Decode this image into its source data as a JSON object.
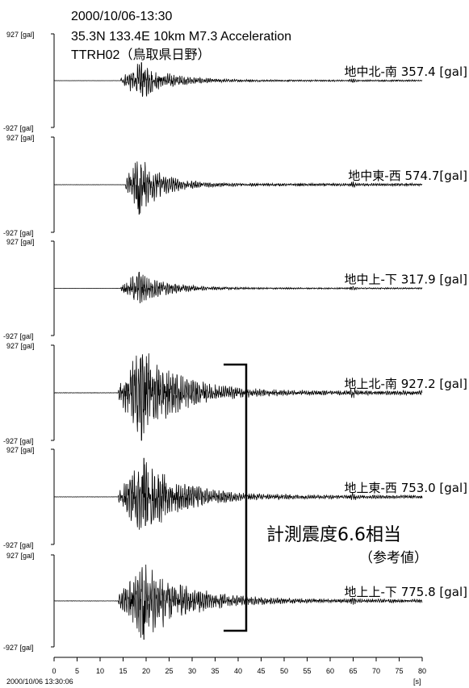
{
  "chart_data": {
    "type": "line",
    "header": {
      "date": "2000/10/06-13:30",
      "event": "35.3N 133.4E 10km M7.3 Acceleration",
      "station": "TTRH02（鳥取県日野）"
    },
    "yrange_label_top": "927 [gal]",
    "yrange_label_bottom": "-927 [gal]",
    "ylim": [
      -927,
      927
    ],
    "xlim": [
      0,
      80
    ],
    "xticks": [
      "0",
      "5",
      "10",
      "15",
      "20",
      "25",
      "30",
      "35",
      "40",
      "45",
      "50",
      "55",
      "60",
      "65",
      "70",
      "75",
      "80"
    ],
    "x_start_label": "2000/10/06 13:30:06",
    "x_unit_label": "[s]",
    "channels": [
      {
        "label": "地中北-南  357.4 [gal]",
        "peak": 357.4,
        "onset": 14.5,
        "peak_time": 19.0,
        "decay": 6
      },
      {
        "label": "地中東-西  574.7[gal]",
        "peak": 574.7,
        "onset": 15.5,
        "peak_time": 18.5,
        "decay": 5
      },
      {
        "label": "地中上-下  317.9 [gal]",
        "peak": 317.9,
        "onset": 14.5,
        "peak_time": 18.5,
        "decay": 6
      },
      {
        "label": "地上北-南  927.2 [gal]",
        "peak": 927.2,
        "onset": 14.0,
        "peak_time": 19.0,
        "decay": 8
      },
      {
        "label": "地上東-西  753.0 [gal]",
        "peak": 753.0,
        "onset": 14.0,
        "peak_time": 19.5,
        "decay": 8
      },
      {
        "label": "地上上-下  775.8 [gal]",
        "peak": 775.8,
        "onset": 14.0,
        "peak_time": 19.5,
        "decay": 9
      }
    ],
    "intensity_note": "計測震度6.6相当",
    "intensity_sub": "（参考値）"
  }
}
